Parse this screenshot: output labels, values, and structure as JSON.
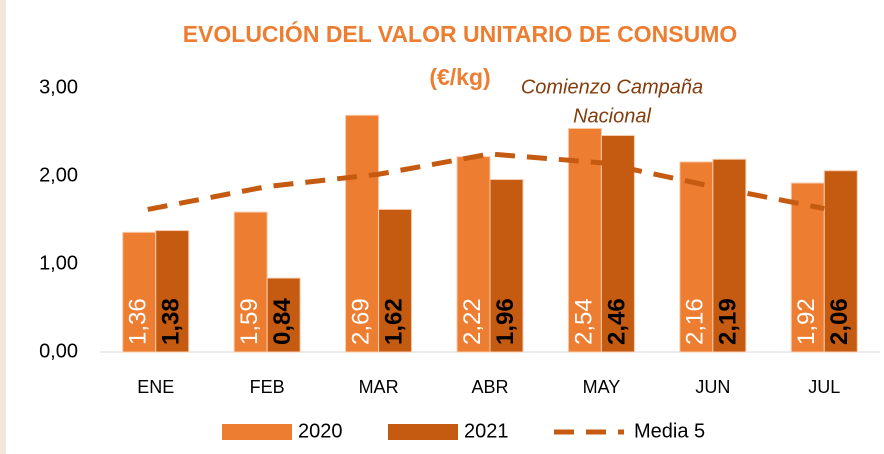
{
  "chart_data": {
    "type": "bar",
    "title": [
      "EVOLUCIÓN DEL VALOR UNITARIO DE CONSUMO",
      "(€/kg)"
    ],
    "annotation": [
      "Comienzo Campaña",
      "Nacional"
    ],
    "categories": [
      "ENE",
      "FEB",
      "MAR",
      "ABR",
      "MAY",
      "JUN",
      "JUL"
    ],
    "series": [
      {
        "name": "2020",
        "color": "#ed7d31",
        "label_color": "#ffffff",
        "values": [
          1.36,
          1.59,
          2.69,
          2.22,
          2.54,
          2.16,
          1.92
        ],
        "value_labels": [
          "1,36",
          "1,59",
          "2,69",
          "2,22",
          "2,54",
          "2,16",
          "1,92"
        ]
      },
      {
        "name": "2021",
        "color": "#c55a11",
        "label_color": "#000000",
        "values": [
          1.38,
          0.84,
          1.62,
          1.96,
          2.46,
          2.19,
          2.06
        ],
        "value_labels": [
          "1,38",
          "0,84",
          "1,62",
          "1,96",
          "2,46",
          "2,19",
          "2,06"
        ]
      },
      {
        "name": "Media 5",
        "type": "line",
        "dashed": true,
        "color": "#c55a11",
        "values": [
          1.62,
          1.88,
          2.02,
          2.25,
          2.15,
          1.88,
          1.63
        ]
      }
    ],
    "ylim": [
      0,
      3
    ],
    "yticks": [
      {
        "value": 0,
        "label": "0,00"
      },
      {
        "value": 1,
        "label": "1,00"
      },
      {
        "value": 2,
        "label": "2,00"
      },
      {
        "value": 3,
        "label": "3,00"
      }
    ],
    "grid": false
  }
}
